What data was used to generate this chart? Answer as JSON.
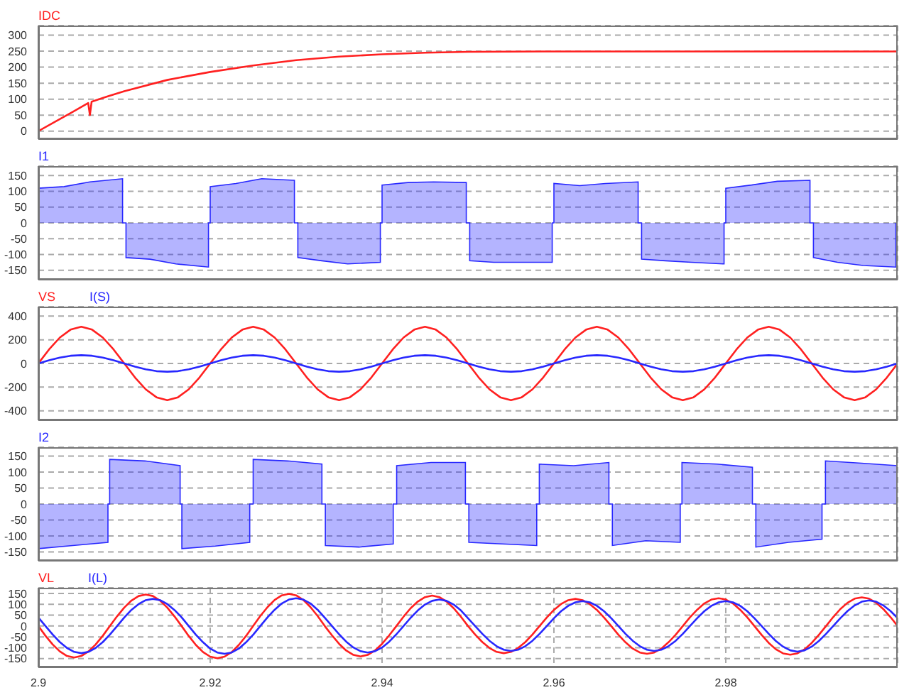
{
  "chart_data": [
    {
      "type": "line",
      "x": [
        2.9,
        2.902,
        2.904,
        2.9058,
        2.906,
        2.9062,
        2.908,
        2.91,
        2.915,
        2.92,
        2.925,
        2.93,
        2.935,
        2.94,
        2.945,
        2.95,
        2.96,
        2.97,
        2.98,
        2.99,
        3.0
      ],
      "xlim": [
        2.9,
        3.0
      ],
      "xticks": [
        2.9,
        2.92,
        2.94,
        2.96,
        2.98
      ],
      "ylim": [
        -25,
        330
      ],
      "yticks": [
        0,
        50,
        100,
        150,
        200,
        250,
        300
      ],
      "grid": true,
      "legend": "top left",
      "tick_labels": "y",
      "series": [
        {
          "name": "IDC",
          "color": "#ff2020",
          "values": [
            0,
            30,
            60,
            88,
            50,
            92,
            108,
            125,
            160,
            185,
            205,
            222,
            233,
            240,
            245,
            248,
            249,
            249,
            249,
            249,
            249
          ]
        }
      ]
    },
    {
      "type": "area",
      "x": [
        2.9,
        2.9,
        2.903,
        2.906,
        2.9098,
        2.9098,
        2.9102,
        2.9102,
        2.913,
        2.916,
        2.9198,
        2.9198,
        2.92,
        2.92,
        2.923,
        2.926,
        2.9298,
        2.9298,
        2.9302,
        2.9302,
        2.933,
        2.936,
        2.9398,
        2.9398,
        2.94,
        2.94,
        2.943,
        2.946,
        2.9498,
        2.9498,
        2.9502,
        2.9502,
        2.953,
        2.956,
        2.9598,
        2.9598,
        2.96,
        2.96,
        2.963,
        2.966,
        2.9698,
        2.9698,
        2.9702,
        2.9702,
        2.973,
        2.976,
        2.9798,
        2.9798,
        2.98,
        2.98,
        2.983,
        2.986,
        2.9898,
        2.9898,
        2.9902,
        2.9902,
        2.993,
        2.996,
        2.9998,
        2.9998
      ],
      "xlim": [
        2.9,
        3.0
      ],
      "xticks": [
        2.9,
        2.92,
        2.94,
        2.96,
        2.98
      ],
      "ylim": [
        -180,
        180
      ],
      "yticks": [
        -150,
        -100,
        -50,
        0,
        50,
        100,
        150
      ],
      "grid": true,
      "legend": "top left",
      "tick_labels": "y",
      "series": [
        {
          "name": "I1",
          "color": "#2828ff",
          "values": [
            0,
            110,
            115,
            130,
            140,
            0,
            0,
            -110,
            -115,
            -130,
            -140,
            0,
            0,
            115,
            125,
            140,
            135,
            0,
            0,
            -110,
            -120,
            -130,
            -125,
            0,
            0,
            120,
            128,
            130,
            128,
            0,
            0,
            -120,
            -125,
            -125,
            -125,
            0,
            0,
            125,
            118,
            125,
            130,
            0,
            0,
            -115,
            -120,
            -125,
            -130,
            0,
            0,
            110,
            120,
            132,
            135,
            0,
            0,
            -110,
            -125,
            -135,
            -140,
            0
          ]
        }
      ]
    },
    {
      "type": "line",
      "x": [
        2.9,
        2.90125,
        2.9025,
        2.90375,
        2.905,
        2.90625,
        2.9075,
        2.90875,
        2.91,
        2.91125,
        2.9125,
        2.91375,
        2.915,
        2.91625,
        2.9175,
        2.91875,
        2.92,
        2.92125,
        2.9225,
        2.92375,
        2.925,
        2.92625,
        2.9275,
        2.92875,
        2.93,
        2.93125,
        2.9325,
        2.93375,
        2.935,
        2.93625,
        2.9375,
        2.93875,
        2.94,
        2.94125,
        2.9425,
        2.94375,
        2.945,
        2.94625,
        2.9475,
        2.94875,
        2.95,
        2.95125,
        2.9525,
        2.95375,
        2.955,
        2.95625,
        2.9575,
        2.95875,
        2.96,
        2.96125,
        2.9625,
        2.96375,
        2.965,
        2.96625,
        2.9675,
        2.96875,
        2.97,
        2.97125,
        2.9725,
        2.97375,
        2.975,
        2.97625,
        2.9775,
        2.97875,
        2.98,
        2.98125,
        2.9825,
        2.98375,
        2.985,
        2.98625,
        2.9875,
        2.98875,
        2.99,
        2.99125,
        2.9925,
        2.99375,
        2.995,
        2.99625,
        2.9975,
        2.99875,
        3.0
      ],
      "xlim": [
        2.9,
        3.0
      ],
      "xticks": [
        2.9,
        2.92,
        2.94,
        2.96,
        2.98
      ],
      "ylim": [
        -480,
        480
      ],
      "yticks": [
        -400,
        -200,
        0,
        200,
        400
      ],
      "grid": true,
      "legend": "top left",
      "tick_labels": "y",
      "series": [
        {
          "name": "VS",
          "color": "#ff2020",
          "values": [
            0,
            119,
            219,
            286,
            310,
            286,
            219,
            119,
            0,
            -119,
            -219,
            -286,
            -310,
            -286,
            -219,
            -119,
            0,
            119,
            219,
            286,
            310,
            286,
            219,
            119,
            0,
            -119,
            -219,
            -286,
            -310,
            -286,
            -219,
            -119,
            0,
            119,
            219,
            286,
            310,
            286,
            219,
            119,
            0,
            -119,
            -219,
            -286,
            -310,
            -286,
            -219,
            -119,
            0,
            119,
            219,
            286,
            310,
            286,
            219,
            119,
            0,
            -119,
            -219,
            -286,
            -310,
            -286,
            -219,
            -119,
            0,
            119,
            219,
            286,
            310,
            286,
            219,
            119,
            0,
            -119,
            -219,
            -286,
            -310,
            -286,
            -219,
            -119,
            0
          ]
        },
        {
          "name": "I(S)",
          "color": "#2828ff",
          "values": [
            0,
            27,
            49,
            65,
            70,
            65,
            49,
            27,
            0,
            -27,
            -49,
            -65,
            -70,
            -65,
            -49,
            -27,
            0,
            27,
            49,
            65,
            70,
            65,
            49,
            27,
            0,
            -27,
            -49,
            -65,
            -70,
            -65,
            -49,
            -27,
            0,
            27,
            49,
            65,
            70,
            65,
            49,
            27,
            0,
            -27,
            -49,
            -65,
            -70,
            -65,
            -49,
            -27,
            0,
            27,
            49,
            65,
            70,
            65,
            49,
            27,
            0,
            -27,
            -49,
            -65,
            -70,
            -65,
            -49,
            -27,
            0,
            27,
            49,
            65,
            70,
            65,
            49,
            27,
            0,
            -27,
            -49,
            -65,
            -70,
            -65,
            -49,
            -27,
            0
          ]
        }
      ]
    },
    {
      "type": "area",
      "x": [
        2.9,
        2.9,
        2.904,
        2.9081,
        2.9081,
        2.9083,
        2.9083,
        2.9124,
        2.9165,
        2.9165,
        2.9167,
        2.9167,
        2.9206,
        2.9246,
        2.9246,
        2.925,
        2.925,
        2.929,
        2.933,
        2.933,
        2.9334,
        2.9334,
        2.9373,
        2.9413,
        2.9413,
        2.9417,
        2.9417,
        2.9457,
        2.9497,
        2.9497,
        2.9501,
        2.9501,
        2.954,
        2.958,
        2.958,
        2.9583,
        2.9583,
        2.9623,
        2.9664,
        2.9664,
        2.9668,
        2.9668,
        2.9707,
        2.9747,
        2.9747,
        2.9749,
        2.9749,
        2.979,
        2.9831,
        2.9831,
        2.9835,
        2.9835,
        2.9873,
        2.9912,
        2.9912,
        2.9916,
        2.9916,
        2.9958,
        3.0,
        3.0
      ],
      "xlim": [
        2.9,
        3.0
      ],
      "xticks": [
        2.9,
        2.92,
        2.94,
        2.96,
        2.98
      ],
      "ylim": [
        -178,
        178
      ],
      "yticks": [
        -150,
        -100,
        -50,
        0,
        50,
        100,
        150
      ],
      "grid": true,
      "legend": "top left",
      "tick_labels": "y",
      "series": [
        {
          "name": "I2",
          "color": "#2828ff",
          "values": [
            0,
            -140,
            -130,
            -120,
            0,
            0,
            140,
            135,
            120,
            0,
            0,
            -140,
            -132,
            -120,
            0,
            0,
            140,
            135,
            125,
            0,
            0,
            -130,
            -135,
            -125,
            0,
            0,
            120,
            130,
            130,
            0,
            0,
            -120,
            -125,
            -130,
            0,
            0,
            125,
            120,
            130,
            0,
            0,
            -130,
            -115,
            -120,
            0,
            0,
            130,
            125,
            115,
            0,
            0,
            -135,
            -120,
            -110,
            0,
            0,
            135,
            128,
            120,
            0
          ]
        }
      ]
    },
    {
      "type": "line",
      "x": [
        2.9,
        2.90083,
        2.90167,
        2.9025,
        2.90333,
        2.90417,
        2.905,
        2.90583,
        2.90667,
        2.9075,
        2.90833,
        2.90917,
        2.91,
        2.91083,
        2.91167,
        2.9125,
        2.91333,
        2.91417,
        2.915,
        2.91583,
        2.91667,
        2.9175,
        2.91833,
        2.91917,
        2.92,
        2.92083,
        2.92167,
        2.9225,
        2.92333,
        2.92417,
        2.925,
        2.92583,
        2.92667,
        2.9275,
        2.92833,
        2.92917,
        2.93,
        2.93083,
        2.93167,
        2.9325,
        2.93333,
        2.93417,
        2.935,
        2.93583,
        2.93667,
        2.9375,
        2.93833,
        2.93917,
        2.94,
        2.94083,
        2.94167,
        2.9425,
        2.94333,
        2.94417,
        2.945,
        2.94583,
        2.94667,
        2.9475,
        2.94833,
        2.94917,
        2.95,
        2.95083,
        2.95167,
        2.9525,
        2.95333,
        2.95417,
        2.955,
        2.95583,
        2.95667,
        2.9575,
        2.95833,
        2.95917,
        2.96,
        2.96083,
        2.96167,
        2.9625,
        2.96333,
        2.96417,
        2.965,
        2.96583,
        2.96667,
        2.9675,
        2.96833,
        2.96917,
        2.97,
        2.97083,
        2.97167,
        2.9725,
        2.97333,
        2.97417,
        2.975,
        2.97583,
        2.97667,
        2.9775,
        2.97833,
        2.97917,
        2.98,
        2.98083,
        2.98167,
        2.9825,
        2.98333,
        2.98417,
        2.985,
        2.98583,
        2.98667,
        2.9875,
        2.98833,
        2.98917,
        2.99,
        2.99083,
        2.99167,
        2.9925,
        2.99333,
        2.99417,
        2.995,
        2.99583,
        2.99667,
        2.9975,
        2.99833,
        2.99917,
        3.0
      ],
      "xlim": [
        2.9,
        3.0
      ],
      "xticks": [
        2.9,
        2.92,
        2.94,
        2.96,
        2.98
      ],
      "ylim": [
        -190,
        176
      ],
      "yticks": [
        -150,
        -100,
        -50,
        0,
        50,
        100,
        150
      ],
      "grid": true,
      "legend": "top left",
      "series": [
        {
          "name": "VL",
          "color": "#ff2020",
          "values": [
            0,
            -45,
            -85,
            -117,
            -138,
            -145,
            -138,
            -117,
            -85,
            -45,
            0,
            45,
            85,
            117,
            138,
            145,
            138,
            117,
            85,
            45,
            0,
            -46,
            -87,
            -120,
            -141,
            -148,
            -141,
            -120,
            -87,
            -46,
            0,
            46,
            87,
            120,
            141,
            148,
            141,
            120,
            87,
            46,
            0,
            -43,
            -82,
            -113,
            -133,
            -140,
            -133,
            -113,
            -82,
            -43,
            0,
            43,
            82,
            113,
            133,
            140,
            133,
            113,
            82,
            43,
            0,
            -39,
            -74,
            -101,
            -119,
            -125,
            -119,
            -101,
            -74,
            -39,
            0,
            39,
            74,
            101,
            119,
            125,
            119,
            101,
            74,
            39,
            0,
            -40,
            -75,
            -104,
            -122,
            -128,
            -122,
            -104,
            -75,
            -40,
            0,
            40,
            75,
            104,
            122,
            128,
            122,
            104,
            75,
            40,
            0,
            -41,
            -78,
            -107,
            -126,
            -132,
            -126,
            -107,
            -78,
            -41,
            0,
            41,
            78,
            107,
            126,
            132,
            126,
            107,
            78,
            41,
            0
          ]
        },
        {
          "name": "I(L)",
          "color": "#2828ff",
          "values": [
            39,
            0,
            -39,
            -74,
            -101,
            -119,
            -125,
            -119,
            -101,
            -74,
            -39,
            0,
            39,
            74,
            101,
            119,
            125,
            119,
            101,
            74,
            40,
            0,
            -40,
            -75,
            -104,
            -122,
            -128,
            -122,
            -104,
            -75,
            -40,
            0,
            40,
            75,
            104,
            122,
            128,
            122,
            104,
            75,
            38,
            0,
            -38,
            -72,
            -99,
            -116,
            -122,
            -116,
            -99,
            -72,
            -38,
            0,
            38,
            72,
            99,
            116,
            122,
            116,
            99,
            72,
            36,
            0,
            -36,
            -68,
            -93,
            -109,
            -115,
            -109,
            -93,
            -68,
            -36,
            0,
            36,
            68,
            93,
            109,
            115,
            109,
            93,
            68,
            36,
            0,
            -36,
            -68,
            -93,
            -109,
            -115,
            -109,
            -93,
            -68,
            -36,
            0,
            36,
            68,
            93,
            109,
            115,
            109,
            93,
            68,
            36,
            0,
            -36,
            -69,
            -95,
            -112,
            -118,
            -112,
            -95,
            -69,
            -36,
            0,
            36,
            69,
            95,
            112,
            118,
            112,
            95,
            69,
            36
          ]
        }
      ]
    }
  ]
}
